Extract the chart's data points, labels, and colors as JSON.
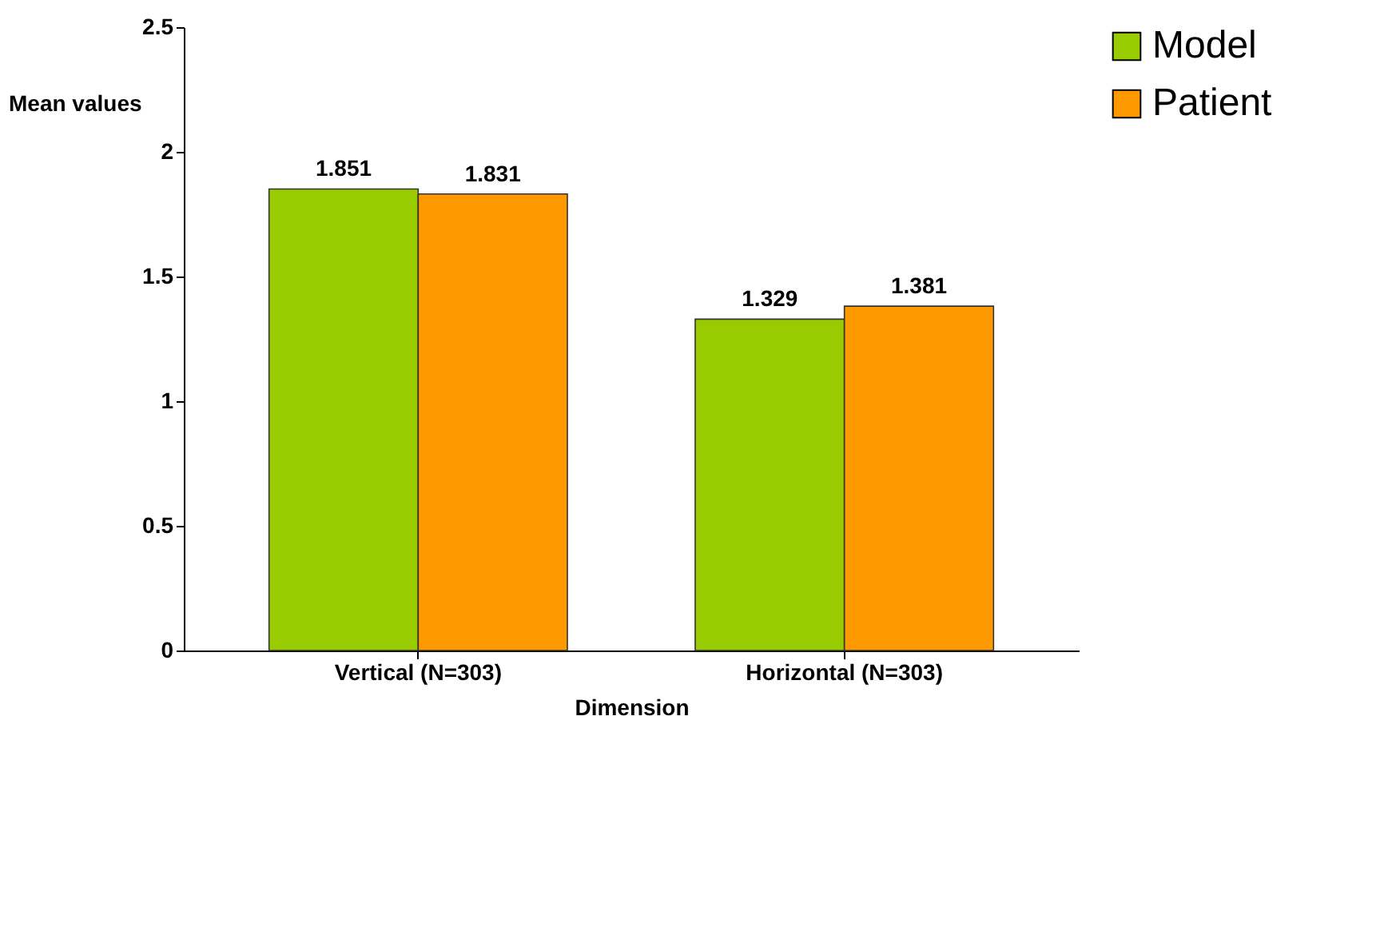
{
  "chart_data": {
    "type": "bar",
    "xlabel": "Dimension",
    "ylabel": "Mean values",
    "categories": [
      "Vertical (N=303)",
      "Horizontal (N=303)"
    ],
    "series": [
      {
        "name": "Model",
        "color": "#99cc00",
        "values": [
          1.851,
          1.329
        ]
      },
      {
        "name": "Patient",
        "color": "#ff9900",
        "values": [
          1.831,
          1.381
        ]
      }
    ],
    "ylim": [
      0,
      2.5
    ],
    "yticks": [
      0,
      0.5,
      1,
      1.5,
      2,
      2.5
    ],
    "data_labels": true,
    "legend": "top right",
    "grid": false
  }
}
